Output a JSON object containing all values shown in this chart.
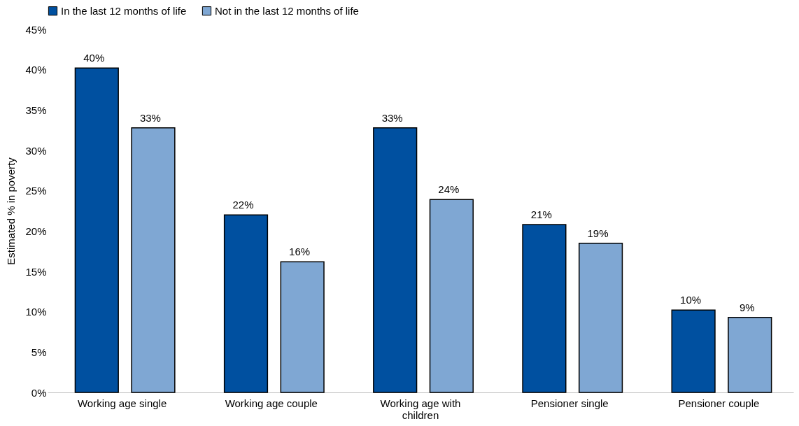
{
  "chart_data": {
    "type": "bar",
    "ylabel": "Estimated % in poverty",
    "categories": [
      "Working age single",
      "Working age couple",
      "Working age with children",
      "Pensioner single",
      "Pensioner couple"
    ],
    "series": [
      {
        "name": "In the last 12 months of life",
        "color": "#0050a0",
        "values": [
          40.2,
          22.0,
          32.8,
          20.8,
          10.2
        ],
        "value_labels": [
          "40%",
          "22%",
          "33%",
          "21%",
          "10%"
        ]
      },
      {
        "name": "Not in the last 12 months of life",
        "color": "#7fa7d3",
        "values": [
          32.8,
          16.2,
          23.9,
          18.5,
          9.3
        ],
        "value_labels": [
          "33%",
          "16%",
          "24%",
          "19%",
          "9%"
        ]
      }
    ],
    "ylim": [
      0,
      45
    ],
    "yticks": [
      {
        "value": 0,
        "label": "0%"
      },
      {
        "value": 5,
        "label": "5%"
      },
      {
        "value": 10,
        "label": "10%"
      },
      {
        "value": 15,
        "label": "15%"
      },
      {
        "value": 20,
        "label": "20%"
      },
      {
        "value": 25,
        "label": "25%"
      },
      {
        "value": 30,
        "label": "30%"
      },
      {
        "value": 35,
        "label": "35%"
      },
      {
        "value": 40,
        "label": "40%"
      },
      {
        "value": 45,
        "label": "45%"
      }
    ],
    "grid": false,
    "legend": "top"
  }
}
